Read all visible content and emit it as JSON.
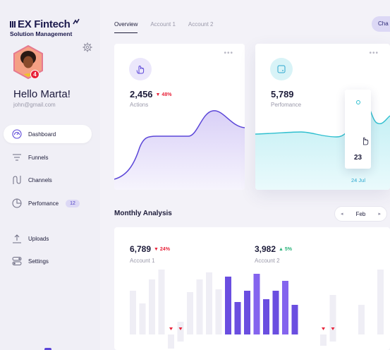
{
  "brand": {
    "name": "EX Fintech",
    "subtitle": "Solution Management"
  },
  "profile": {
    "greeting": "Hello Marta!",
    "email": "john@gmail.com",
    "notifications": "4"
  },
  "nav": {
    "items": [
      {
        "label": "Dashboard",
        "icon": "dashboard-icon",
        "active": true
      },
      {
        "label": "Funnels",
        "icon": "funnel-icon"
      },
      {
        "label": "Channels",
        "icon": "channels-icon"
      },
      {
        "label": "Perfomance",
        "icon": "pie-icon",
        "count": "12"
      },
      {
        "label": "Uploads",
        "icon": "upload-icon"
      },
      {
        "label": "Settings",
        "icon": "settings-toggle-icon"
      }
    ]
  },
  "header": {
    "tabs": [
      {
        "label": "Overview",
        "active": true
      },
      {
        "label": "Account 1"
      },
      {
        "label": "Account 2"
      }
    ],
    "change_label": "Cha"
  },
  "cards": [
    {
      "value": "2,456",
      "delta": "48%",
      "trend": "down",
      "label": "Actions",
      "icon": "hand-pointer-icon"
    },
    {
      "value": "5,789",
      "label": "Perfomance",
      "icon": "tablet-icon",
      "tooltip_value": "23",
      "tooltip_date": "24 Jul"
    }
  ],
  "monthly": {
    "title": "Monthly Analysis",
    "month": "Feb",
    "accounts": [
      {
        "value": "6,789",
        "delta": "24%",
        "trend": "down",
        "label": "Account 1"
      },
      {
        "value": "3,982",
        "delta": "5%",
        "trend": "up",
        "label": "Account 2"
      }
    ]
  },
  "colors": {
    "accent": "#6a4ee0",
    "teal": "#2fbfcf",
    "red": "#e8233a",
    "green": "#2ab37a"
  }
}
